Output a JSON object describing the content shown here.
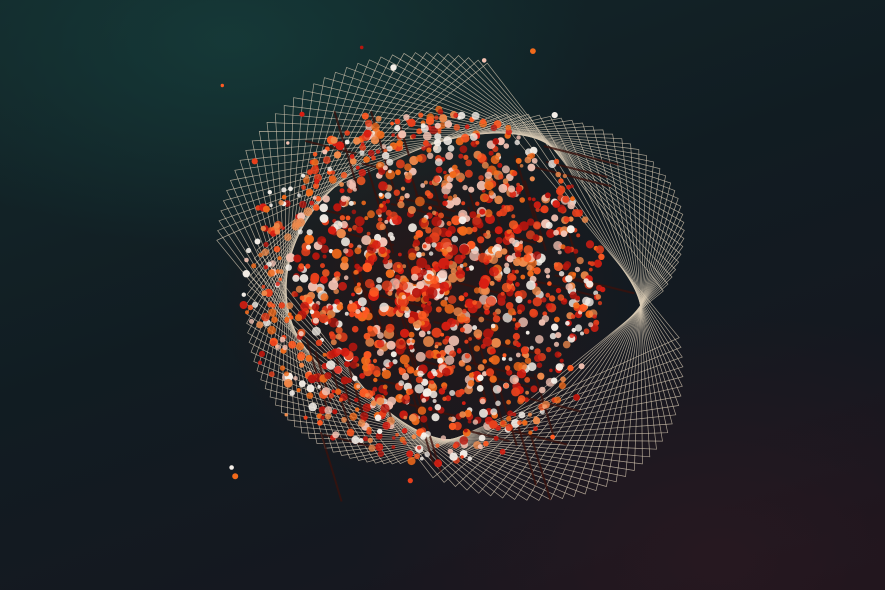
{
  "artwork": {
    "subject": "abstract-sphere-cluster",
    "background_colors": [
      "#13292b",
      "#111c22",
      "#1c141c"
    ],
    "line_color": "#d9cbb4",
    "lattice_color": "#3a120c",
    "particle_palette": [
      "#e8401c",
      "#f26a1b",
      "#d91e12",
      "#f08a4b",
      "#f3c2b2",
      "#f5efe8",
      "#b8160e",
      "#ff5a22"
    ]
  }
}
